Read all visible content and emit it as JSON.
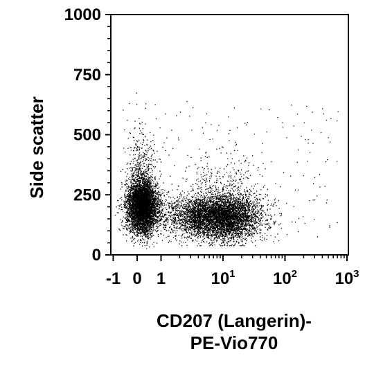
{
  "chart_data": {
    "type": "scatter",
    "ylabel": "Side scatter",
    "xlabel_lines": [
      "CD207 (Langerin)-",
      "PE-Vio770"
    ],
    "y_axis": {
      "scale": "linear",
      "ylim": [
        0,
        1000
      ],
      "ticks": [
        "0",
        "250",
        "500",
        "750",
        "1000"
      ]
    },
    "x_axis": {
      "scale": "biexponential",
      "xlim": [
        -1,
        1000
      ],
      "ticks": [
        {
          "base": "-1",
          "exp": ""
        },
        {
          "base": "0",
          "exp": ""
        },
        {
          "base": "1",
          "exp": ""
        },
        {
          "base": "10",
          "exp": "1"
        },
        {
          "base": "10",
          "exp": "2"
        },
        {
          "base": "10",
          "exp": "3"
        }
      ]
    },
    "grid": false,
    "legend": "none",
    "point_color": "#000000",
    "populations": [
      {
        "center_x": 0.2,
        "center_y": 200,
        "spread_y": 55,
        "approx_events": 5500
      },
      {
        "center_x": 10,
        "center_y": 155,
        "spread_y": 45,
        "approx_events": 5000
      }
    ]
  }
}
